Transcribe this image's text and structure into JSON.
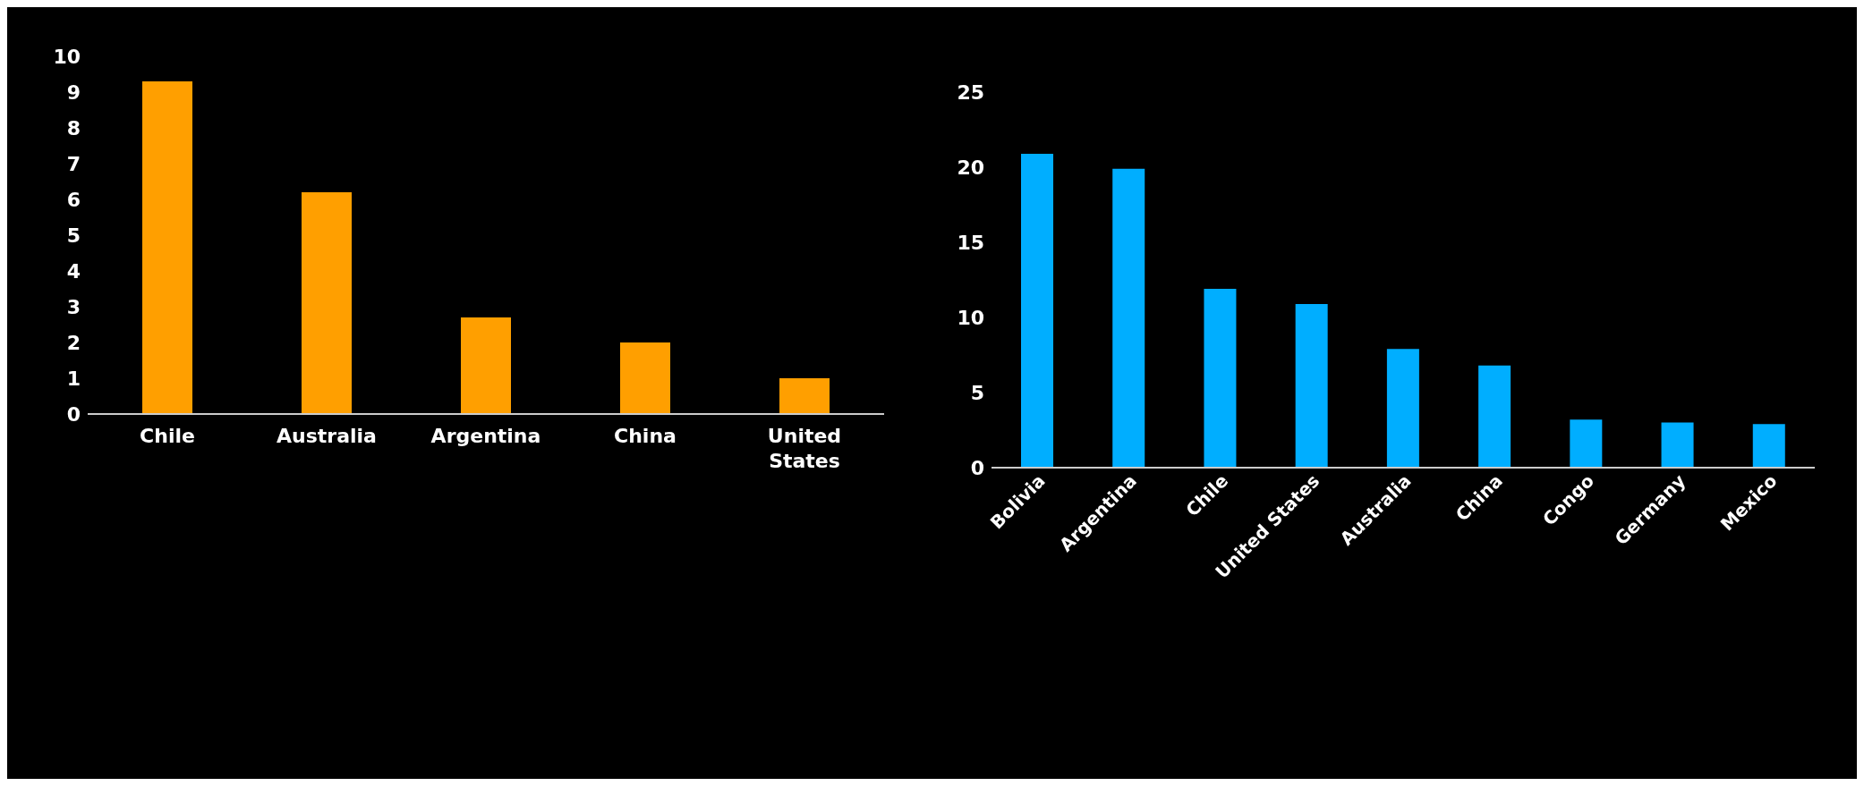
{
  "chart_data": [
    {
      "type": "bar",
      "categories": [
        "Chile",
        "Australia",
        "Argentina",
        "China",
        "United States"
      ],
      "values": [
        9.3,
        6.2,
        2.7,
        2.0,
        1.0
      ],
      "color": "#ff9f00",
      "ylim": [
        0,
        10
      ],
      "yticks": [
        0,
        1,
        2,
        3,
        4,
        5,
        6,
        7,
        8,
        9,
        10
      ],
      "grid": false
    },
    {
      "type": "bar",
      "categories": [
        "Bolivia",
        "Argentina",
        "Chile",
        "United States",
        "Australia",
        "China",
        "Congo",
        "Germany",
        "Mexico"
      ],
      "values": [
        20.9,
        19.9,
        11.9,
        10.9,
        7.9,
        6.8,
        3.2,
        3.0,
        2.9
      ],
      "color": "#00aeff",
      "ylim": [
        0,
        25
      ],
      "yticks": [
        0,
        5,
        10,
        15,
        20,
        25
      ],
      "grid": false
    }
  ]
}
